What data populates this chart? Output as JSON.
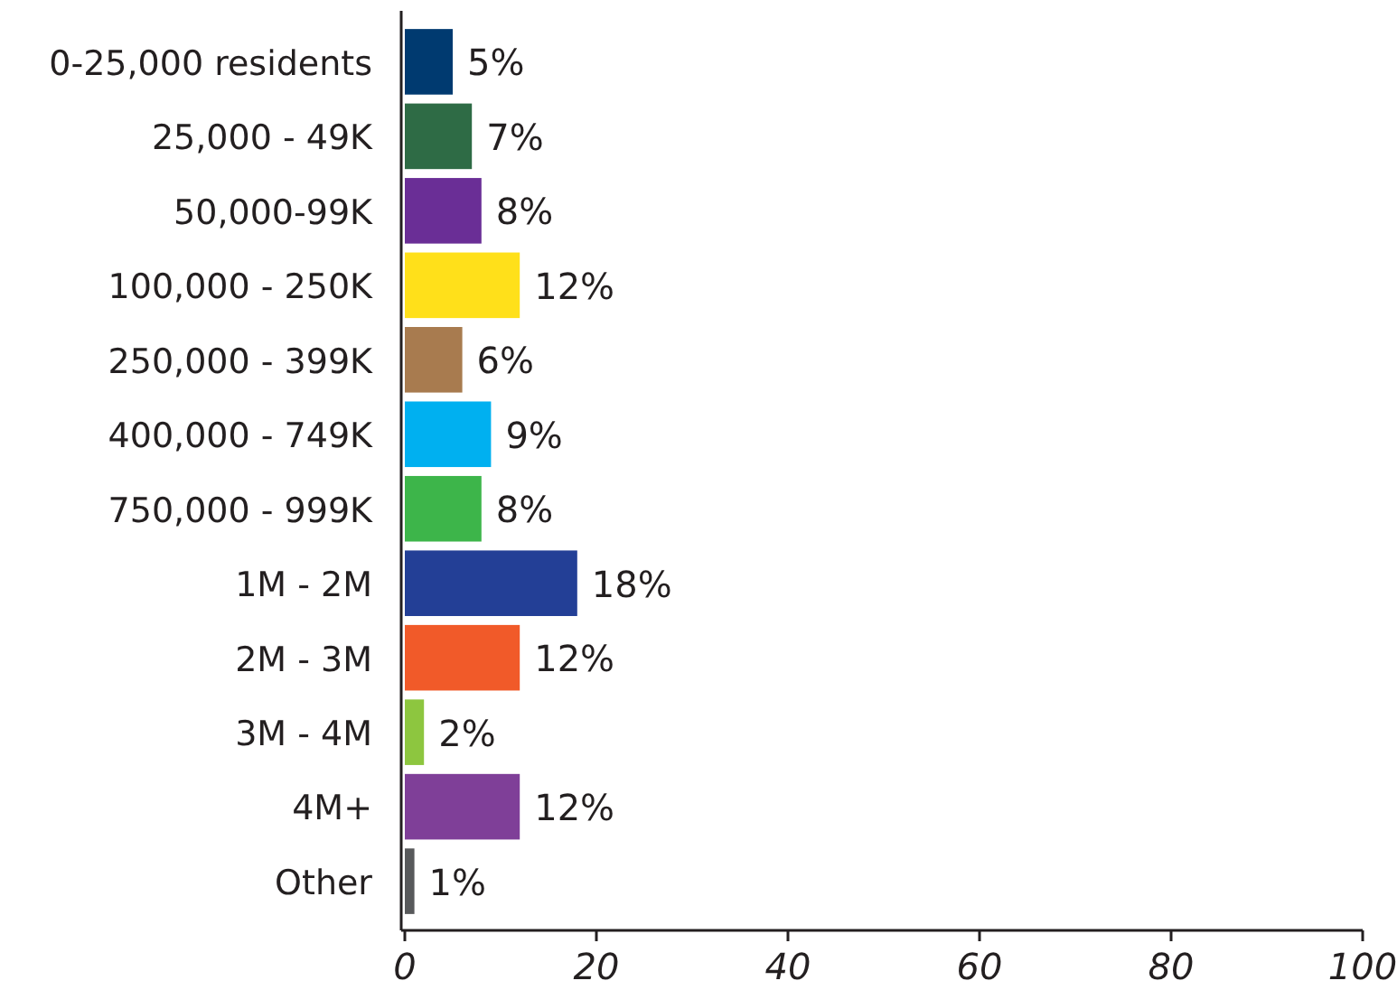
{
  "chart_data": {
    "type": "bar",
    "orientation": "horizontal",
    "categories": [
      "0-25,000 residents",
      "25,000 - 49K",
      "50,000-99K",
      "100,000 - 250K",
      "250,000 - 399K",
      "400,000 - 749K",
      "750,000 - 999K",
      "1M - 2M",
      "2M - 3M",
      "3M - 4M",
      "4M+",
      "Other"
    ],
    "values": [
      5,
      7,
      8,
      12,
      6,
      9,
      8,
      18,
      12,
      2,
      12,
      1
    ],
    "colors": [
      "#003a70",
      "#2e6b45",
      "#6a2e96",
      "#ffe01a",
      "#a87b4f",
      "#00b0f0",
      "#3db54a",
      "#233f96",
      "#f15a29",
      "#8dc63f",
      "#7f3f98",
      "#58595b"
    ],
    "value_labels": [
      "5%",
      "7%",
      "8%",
      "12%",
      "6%",
      "9%",
      "8%",
      "18%",
      "12%",
      "2%",
      "12%",
      "1%"
    ],
    "xlim": [
      0,
      100
    ],
    "xticks": [
      0,
      20,
      40,
      60,
      80,
      100
    ],
    "grid": false
  }
}
